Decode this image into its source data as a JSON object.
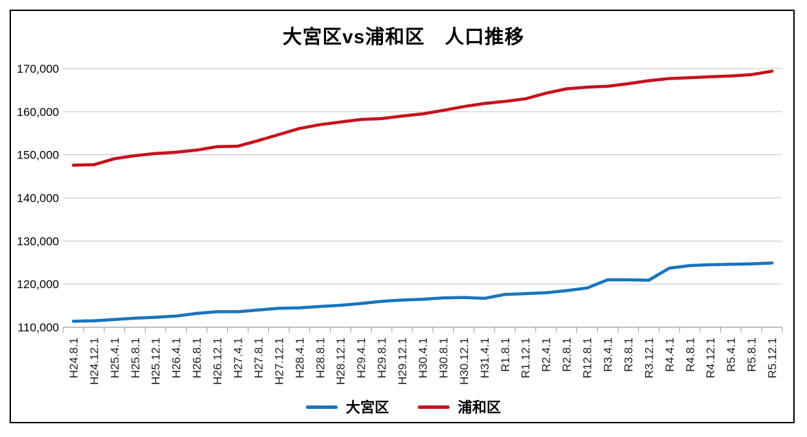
{
  "chart": {
    "title": "大宮区vs浦和区　人口推移"
  },
  "chart_data": {
    "type": "line",
    "title": "大宮区vs浦和区　人口推移",
    "categories": [
      "H24.8.1",
      "H24.12.1",
      "H25.4.1",
      "H25.8.1",
      "H25.12.1",
      "H26.4.1",
      "H26.8.1",
      "H26.12.1",
      "H27.4.1",
      "H27.8.1",
      "H27.12.1",
      "H28.4.1",
      "H28.8.1",
      "H28.12.1",
      "H29.4.1",
      "H29.8.1",
      "H29.12.1",
      "H30.4.1",
      "H30.8.1",
      "H30.12.1",
      "H31.4.1",
      "R1.8.1",
      "R1.12.1",
      "R2.4.1",
      "R2.8.1",
      "R12.8.1",
      "R3.4.1",
      "R3.8.1",
      "R3.12.1",
      "R4.4.1",
      "R4.8.1",
      "R4.12.1",
      "R5.4.1",
      "R5.8.1",
      "R5.12.1"
    ],
    "series": [
      {
        "name": "大宮区",
        "color": "#1B74BC",
        "values": [
          111400,
          111500,
          111800,
          112100,
          112300,
          112600,
          113200,
          113600,
          113600,
          114000,
          114400,
          114500,
          114800,
          115100,
          115500,
          116000,
          116300,
          116500,
          116800,
          116900,
          116700,
          117600,
          117800,
          118000,
          118500,
          119100,
          121000,
          121000,
          120900,
          123700,
          124300,
          124500,
          124600,
          124700,
          124900
        ]
      },
      {
        "name": "浦和区",
        "color": "#C5121E",
        "values": [
          147600,
          147700,
          149100,
          149800,
          150300,
          150600,
          151100,
          151900,
          152000,
          153300,
          154700,
          156100,
          157000,
          157600,
          158200,
          158400,
          159000,
          159500,
          160300,
          161200,
          161900,
          162400,
          163000,
          164300,
          165300,
          165700,
          165900,
          166500,
          167200,
          167700,
          167900,
          168100,
          168300,
          168600,
          169400
        ]
      }
    ],
    "xlabel": "",
    "ylabel": "",
    "ylim": [
      110000,
      170000
    ],
    "ytick_interval": 10000,
    "ytick_labels": [
      "170,000",
      "160,000",
      "150,000",
      "140,000",
      "130,000",
      "120,000",
      "110,000"
    ],
    "grid": true,
    "gridline_color": "#C6C6C6",
    "axis_color": "#9B9B9B",
    "tick_label_color": "#1f1f1f",
    "legend_position": "bottom"
  }
}
